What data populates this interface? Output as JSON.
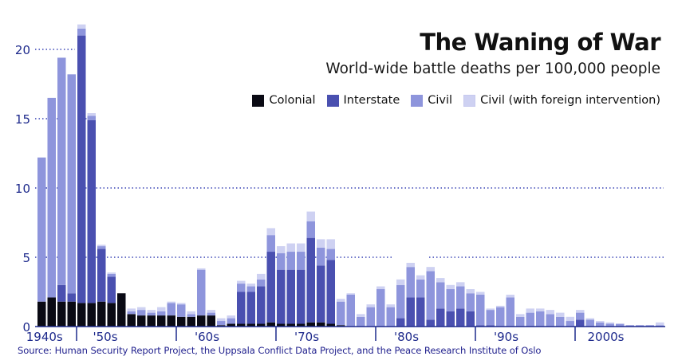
{
  "chart_data": {
    "type": "bar",
    "stacked": true,
    "title": "The Waning of War",
    "subtitle": "World-wide battle deaths per 100,000 people",
    "source": "Source: Human Security Report Project, the Uppsala Conflict Data Project, and the Peace Research Institute of Oslo",
    "ylim": [
      0,
      22
    ],
    "yticks": [
      0,
      5,
      10,
      15,
      20
    ],
    "x_ticks": [
      "1940s",
      "'50s",
      "'60s",
      "'70s",
      "'80s",
      "'90s",
      "2000s"
    ],
    "years": [
      1946,
      1947,
      1948,
      1949,
      1950,
      1951,
      1952,
      1953,
      1954,
      1955,
      1956,
      1957,
      1958,
      1959,
      1960,
      1961,
      1962,
      1963,
      1964,
      1965,
      1966,
      1967,
      1968,
      1969,
      1970,
      1971,
      1972,
      1973,
      1974,
      1975,
      1976,
      1977,
      1978,
      1979,
      1980,
      1981,
      1982,
      1983,
      1984,
      1985,
      1986,
      1987,
      1988,
      1989,
      1990,
      1991,
      1992,
      1993,
      1994,
      1995,
      1996,
      1997,
      1998,
      1999,
      2000,
      2001,
      2002,
      2003,
      2004,
      2005,
      2006,
      2007,
      2008
    ],
    "series": [
      {
        "name": "Colonial",
        "color": "#0a0a14",
        "values": [
          1.8,
          2.1,
          1.8,
          1.8,
          1.7,
          1.7,
          1.8,
          1.7,
          2.4,
          0.9,
          0.8,
          0.8,
          0.8,
          0.8,
          0.7,
          0.7,
          0.8,
          0.8,
          0.1,
          0.2,
          0.2,
          0.2,
          0.2,
          0.3,
          0.2,
          0.2,
          0.2,
          0.3,
          0.3,
          0.2,
          0.1,
          0,
          0,
          0,
          0,
          0,
          0,
          0,
          0,
          0,
          0,
          0,
          0,
          0,
          0,
          0,
          0,
          0,
          0,
          0,
          0,
          0,
          0,
          0,
          0,
          0,
          0,
          0,
          0,
          0,
          0,
          0,
          0
        ]
      },
      {
        "name": "Interstate",
        "color": "#4a50b0",
        "values": [
          0,
          0,
          1.2,
          0.6,
          19.3,
          13.2,
          3.8,
          1.9,
          0,
          0,
          0,
          0,
          0,
          0,
          0,
          0,
          0,
          0,
          0,
          0,
          2.3,
          2.3,
          2.7,
          5.1,
          3.9,
          3.9,
          3.9,
          6.1,
          4.1,
          4.6,
          0,
          0,
          0,
          0,
          0,
          0,
          0.6,
          2.1,
          2.1,
          0.5,
          1.3,
          1.1,
          1.3,
          1.1,
          0.1,
          0.1,
          0,
          0,
          0,
          0,
          0,
          0,
          0,
          0,
          0.5,
          0,
          0,
          0,
          0,
          0,
          0,
          0,
          0
        ]
      },
      {
        "name": "Civil",
        "color": "#8e95dc",
        "values": [
          10.4,
          14.4,
          16.4,
          15.8,
          0.5,
          0.3,
          0.2,
          0.2,
          0,
          0.2,
          0.4,
          0.2,
          0.3,
          0.9,
          0.9,
          0.2,
          3.3,
          0.2,
          0.3,
          0.4,
          0.6,
          0.4,
          0.5,
          1.2,
          1.2,
          1.3,
          1.3,
          1.2,
          1.3,
          0.8,
          1.7,
          2.3,
          0.7,
          1.4,
          2.7,
          1.4,
          2.4,
          2.2,
          1.3,
          3.5,
          1.9,
          1.6,
          1.6,
          1.3,
          2.2,
          1.1,
          1.4,
          2.1,
          0.7,
          1.0,
          1.1,
          0.9,
          0.7,
          0.4,
          0.5,
          0.5,
          0.3,
          0.2,
          0.2,
          0.1,
          0.1,
          0.1,
          0.1
        ]
      },
      {
        "name": "Civil (with foreign intervention)",
        "color": "#ced1f2",
        "values": [
          0,
          0,
          0,
          0,
          0.3,
          0.2,
          0.1,
          0.1,
          0,
          0.2,
          0.2,
          0.2,
          0.3,
          0.1,
          0.1,
          0.2,
          0.1,
          0.2,
          0.2,
          0.2,
          0.2,
          0.2,
          0.4,
          0.5,
          0.5,
          0.6,
          0.6,
          0.7,
          0.6,
          0.7,
          0.2,
          0.1,
          0.2,
          0.2,
          0.2,
          0.2,
          0.4,
          0.3,
          0.3,
          0.3,
          0.3,
          0.3,
          0.3,
          0.3,
          0.2,
          0.1,
          0.1,
          0.2,
          0.2,
          0.3,
          0.2,
          0.3,
          0.3,
          0.3,
          0.2,
          0.1,
          0.1,
          0.1,
          0,
          0,
          0,
          0,
          0.2
        ]
      }
    ]
  }
}
